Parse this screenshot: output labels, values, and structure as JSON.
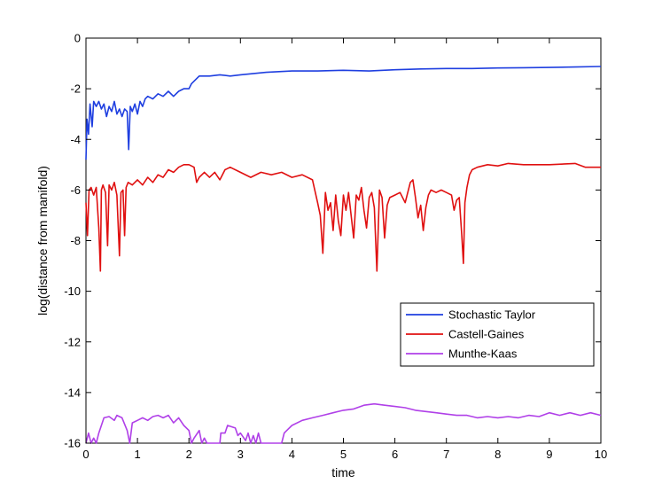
{
  "chart_data": {
    "type": "line",
    "title": "",
    "xlabel": "time",
    "ylabel": "log(distance from manifold)",
    "xlim": [
      0,
      10
    ],
    "ylim": [
      -16,
      0
    ],
    "x_ticks": [
      "0",
      "1",
      "2",
      "3",
      "4",
      "5",
      "6",
      "7",
      "8",
      "9",
      "10"
    ],
    "y_ticks": [
      "0",
      "-2",
      "-4",
      "-6",
      "-8",
      "-10",
      "-12",
      "-14",
      "-16"
    ],
    "grid": false,
    "legend_position": "right",
    "series": [
      {
        "name": "Stochastic Taylor",
        "color": "#1f3fe0",
        "points": [
          [
            0.0,
            -4.8
          ],
          [
            0.02,
            -3.2
          ],
          [
            0.05,
            -3.8
          ],
          [
            0.08,
            -2.6
          ],
          [
            0.12,
            -3.5
          ],
          [
            0.15,
            -2.5
          ],
          [
            0.2,
            -2.7
          ],
          [
            0.25,
            -2.5
          ],
          [
            0.3,
            -2.8
          ],
          [
            0.35,
            -2.6
          ],
          [
            0.4,
            -3.1
          ],
          [
            0.45,
            -2.7
          ],
          [
            0.5,
            -2.9
          ],
          [
            0.55,
            -2.5
          ],
          [
            0.6,
            -3.0
          ],
          [
            0.65,
            -2.8
          ],
          [
            0.7,
            -3.1
          ],
          [
            0.75,
            -2.8
          ],
          [
            0.8,
            -2.9
          ],
          [
            0.83,
            -4.4
          ],
          [
            0.86,
            -2.7
          ],
          [
            0.9,
            -2.9
          ],
          [
            0.95,
            -2.6
          ],
          [
            1.0,
            -3.0
          ],
          [
            1.05,
            -2.5
          ],
          [
            1.1,
            -2.7
          ],
          [
            1.15,
            -2.4
          ],
          [
            1.2,
            -2.3
          ],
          [
            1.3,
            -2.4
          ],
          [
            1.4,
            -2.2
          ],
          [
            1.5,
            -2.3
          ],
          [
            1.6,
            -2.1
          ],
          [
            1.7,
            -2.3
          ],
          [
            1.8,
            -2.1
          ],
          [
            1.9,
            -2.0
          ],
          [
            2.0,
            -2.0
          ],
          [
            2.05,
            -1.8
          ],
          [
            2.1,
            -1.7
          ],
          [
            2.2,
            -1.5
          ],
          [
            2.4,
            -1.5
          ],
          [
            2.6,
            -1.45
          ],
          [
            2.8,
            -1.5
          ],
          [
            3.0,
            -1.45
          ],
          [
            3.5,
            -1.35
          ],
          [
            4.0,
            -1.3
          ],
          [
            4.5,
            -1.3
          ],
          [
            5.0,
            -1.27
          ],
          [
            5.5,
            -1.3
          ],
          [
            6.0,
            -1.25
          ],
          [
            6.5,
            -1.22
          ],
          [
            7.0,
            -1.2
          ],
          [
            7.5,
            -1.2
          ],
          [
            8.0,
            -1.18
          ],
          [
            8.5,
            -1.17
          ],
          [
            9.0,
            -1.16
          ],
          [
            9.5,
            -1.14
          ],
          [
            10.0,
            -1.12
          ]
        ]
      },
      {
        "name": "Castell-Gaines",
        "color": "#e01010",
        "points": [
          [
            0.0,
            -6.5
          ],
          [
            0.03,
            -7.8
          ],
          [
            0.06,
            -6.0
          ],
          [
            0.1,
            -5.9
          ],
          [
            0.15,
            -6.2
          ],
          [
            0.2,
            -5.9
          ],
          [
            0.25,
            -7.5
          ],
          [
            0.28,
            -9.2
          ],
          [
            0.3,
            -6.0
          ],
          [
            0.33,
            -5.8
          ],
          [
            0.38,
            -6.1
          ],
          [
            0.42,
            -8.2
          ],
          [
            0.45,
            -5.8
          ],
          [
            0.5,
            -6.0
          ],
          [
            0.55,
            -5.7
          ],
          [
            0.6,
            -6.2
          ],
          [
            0.65,
            -8.6
          ],
          [
            0.68,
            -6.1
          ],
          [
            0.72,
            -6.0
          ],
          [
            0.75,
            -7.8
          ],
          [
            0.78,
            -5.9
          ],
          [
            0.82,
            -5.7
          ],
          [
            0.9,
            -5.8
          ],
          [
            1.0,
            -5.6
          ],
          [
            1.1,
            -5.8
          ],
          [
            1.2,
            -5.5
          ],
          [
            1.3,
            -5.7
          ],
          [
            1.4,
            -5.4
          ],
          [
            1.5,
            -5.5
          ],
          [
            1.6,
            -5.2
          ],
          [
            1.7,
            -5.3
          ],
          [
            1.8,
            -5.1
          ],
          [
            1.9,
            -5.0
          ],
          [
            2.0,
            -5.0
          ],
          [
            2.1,
            -5.1
          ],
          [
            2.15,
            -5.7
          ],
          [
            2.2,
            -5.5
          ],
          [
            2.3,
            -5.3
          ],
          [
            2.4,
            -5.5
          ],
          [
            2.5,
            -5.3
          ],
          [
            2.6,
            -5.6
          ],
          [
            2.7,
            -5.2
          ],
          [
            2.8,
            -5.1
          ],
          [
            3.0,
            -5.3
          ],
          [
            3.2,
            -5.5
          ],
          [
            3.4,
            -5.3
          ],
          [
            3.6,
            -5.4
          ],
          [
            3.8,
            -5.3
          ],
          [
            4.0,
            -5.5
          ],
          [
            4.2,
            -5.4
          ],
          [
            4.4,
            -5.6
          ],
          [
            4.5,
            -6.5
          ],
          [
            4.55,
            -7.0
          ],
          [
            4.6,
            -8.5
          ],
          [
            4.65,
            -6.1
          ],
          [
            4.7,
            -6.8
          ],
          [
            4.75,
            -6.5
          ],
          [
            4.8,
            -7.6
          ],
          [
            4.85,
            -6.2
          ],
          [
            4.9,
            -7.2
          ],
          [
            4.95,
            -7.8
          ],
          [
            5.0,
            -6.2
          ],
          [
            5.05,
            -6.8
          ],
          [
            5.1,
            -6.1
          ],
          [
            5.2,
            -7.9
          ],
          [
            5.25,
            -6.2
          ],
          [
            5.3,
            -6.4
          ],
          [
            5.35,
            -5.9
          ],
          [
            5.4,
            -6.8
          ],
          [
            5.45,
            -7.5
          ],
          [
            5.5,
            -6.3
          ],
          [
            5.55,
            -6.1
          ],
          [
            5.6,
            -6.7
          ],
          [
            5.65,
            -9.2
          ],
          [
            5.7,
            -6.0
          ],
          [
            5.75,
            -6.3
          ],
          [
            5.8,
            -7.9
          ],
          [
            5.85,
            -6.6
          ],
          [
            5.9,
            -6.3
          ],
          [
            6.0,
            -6.2
          ],
          [
            6.1,
            -6.1
          ],
          [
            6.2,
            -6.5
          ],
          [
            6.3,
            -5.7
          ],
          [
            6.35,
            -5.6
          ],
          [
            6.4,
            -6.3
          ],
          [
            6.45,
            -7.1
          ],
          [
            6.5,
            -6.6
          ],
          [
            6.55,
            -7.6
          ],
          [
            6.6,
            -6.7
          ],
          [
            6.65,
            -6.2
          ],
          [
            6.7,
            -6.0
          ],
          [
            6.8,
            -6.1
          ],
          [
            6.9,
            -6.0
          ],
          [
            7.0,
            -6.1
          ],
          [
            7.1,
            -6.2
          ],
          [
            7.15,
            -6.8
          ],
          [
            7.2,
            -6.4
          ],
          [
            7.25,
            -6.3
          ],
          [
            7.3,
            -7.8
          ],
          [
            7.33,
            -8.9
          ],
          [
            7.36,
            -6.5
          ],
          [
            7.4,
            -5.9
          ],
          [
            7.45,
            -5.4
          ],
          [
            7.5,
            -5.2
          ],
          [
            7.6,
            -5.1
          ],
          [
            7.8,
            -5.0
          ],
          [
            8.0,
            -5.05
          ],
          [
            8.2,
            -4.95
          ],
          [
            8.5,
            -5.0
          ],
          [
            9.0,
            -5.0
          ],
          [
            9.5,
            -4.95
          ],
          [
            9.7,
            -5.1
          ],
          [
            10.0,
            -5.1
          ]
        ]
      },
      {
        "name": "Munthe-Kaas",
        "color": "#b040e8",
        "points": [
          [
            0.0,
            -16.0
          ],
          [
            0.05,
            -15.6
          ],
          [
            0.1,
            -16.0
          ],
          [
            0.15,
            -15.8
          ],
          [
            0.2,
            -16.0
          ],
          [
            0.25,
            -15.6
          ],
          [
            0.3,
            -15.3
          ],
          [
            0.35,
            -15.0
          ],
          [
            0.45,
            -14.95
          ],
          [
            0.55,
            -15.1
          ],
          [
            0.6,
            -14.9
          ],
          [
            0.7,
            -15.0
          ],
          [
            0.8,
            -15.5
          ],
          [
            0.85,
            -16.0
          ],
          [
            0.9,
            -15.2
          ],
          [
            1.0,
            -15.1
          ],
          [
            1.1,
            -15.0
          ],
          [
            1.2,
            -15.1
          ],
          [
            1.3,
            -14.95
          ],
          [
            1.4,
            -14.9
          ],
          [
            1.5,
            -15.0
          ],
          [
            1.6,
            -14.9
          ],
          [
            1.7,
            -15.2
          ],
          [
            1.8,
            -15.0
          ],
          [
            1.9,
            -15.3
          ],
          [
            2.0,
            -15.5
          ],
          [
            2.05,
            -16.0
          ],
          [
            2.1,
            -15.8
          ],
          [
            2.2,
            -15.5
          ],
          [
            2.25,
            -16.0
          ],
          [
            2.3,
            -15.8
          ],
          [
            2.35,
            -16.0
          ],
          [
            2.6,
            -16.0
          ],
          [
            2.62,
            -15.6
          ],
          [
            2.7,
            -15.6
          ],
          [
            2.75,
            -15.3
          ],
          [
            2.9,
            -15.4
          ],
          [
            2.95,
            -15.7
          ],
          [
            3.0,
            -15.6
          ],
          [
            3.1,
            -15.9
          ],
          [
            3.15,
            -15.6
          ],
          [
            3.2,
            -16.0
          ],
          [
            3.25,
            -15.7
          ],
          [
            3.3,
            -16.0
          ],
          [
            3.35,
            -15.6
          ],
          [
            3.4,
            -16.0
          ],
          [
            3.8,
            -16.0
          ],
          [
            3.85,
            -15.6
          ],
          [
            3.9,
            -15.5
          ],
          [
            4.0,
            -15.3
          ],
          [
            4.2,
            -15.1
          ],
          [
            4.4,
            -15.0
          ],
          [
            4.6,
            -14.9
          ],
          [
            4.8,
            -14.8
          ],
          [
            5.0,
            -14.7
          ],
          [
            5.2,
            -14.65
          ],
          [
            5.4,
            -14.5
          ],
          [
            5.6,
            -14.45
          ],
          [
            5.8,
            -14.5
          ],
          [
            6.0,
            -14.55
          ],
          [
            6.2,
            -14.6
          ],
          [
            6.4,
            -14.7
          ],
          [
            6.6,
            -14.75
          ],
          [
            6.8,
            -14.8
          ],
          [
            7.0,
            -14.85
          ],
          [
            7.2,
            -14.9
          ],
          [
            7.4,
            -14.9
          ],
          [
            7.6,
            -15.0
          ],
          [
            7.8,
            -14.95
          ],
          [
            8.0,
            -15.0
          ],
          [
            8.2,
            -14.95
          ],
          [
            8.4,
            -15.0
          ],
          [
            8.6,
            -14.9
          ],
          [
            8.8,
            -14.95
          ],
          [
            9.0,
            -14.8
          ],
          [
            9.2,
            -14.9
          ],
          [
            9.4,
            -14.8
          ],
          [
            9.6,
            -14.9
          ],
          [
            9.8,
            -14.8
          ],
          [
            10.0,
            -14.9
          ]
        ]
      }
    ]
  }
}
